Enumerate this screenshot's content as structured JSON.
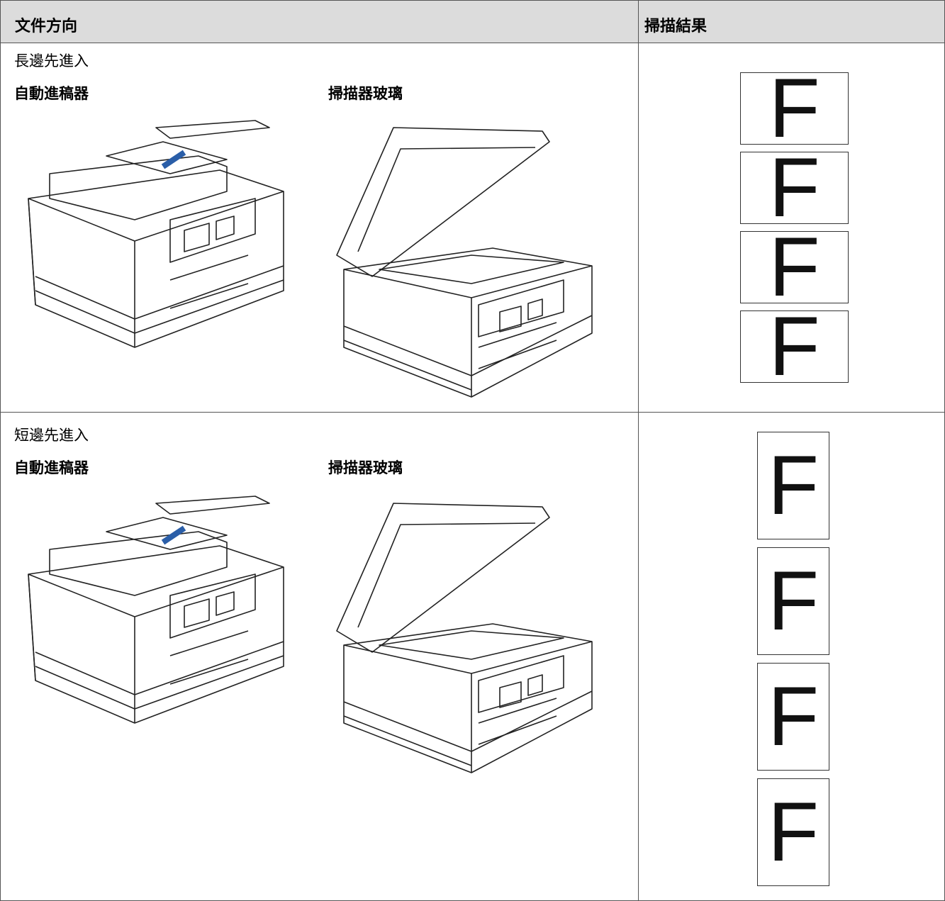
{
  "table": {
    "headers": [
      "文件方向",
      "掃描結果"
    ],
    "rows": [
      {
        "orientation": "長邊先進入",
        "adf": "自動進稿器",
        "glass": "掃描器玻璃",
        "result_pages": [
          "F",
          "F",
          "F",
          "F"
        ]
      },
      {
        "orientation": "短邊先進入",
        "adf": "自動進稿器",
        "glass": "掃描器玻璃",
        "result_pages": [
          "F",
          "F",
          "F",
          "F"
        ]
      }
    ]
  }
}
